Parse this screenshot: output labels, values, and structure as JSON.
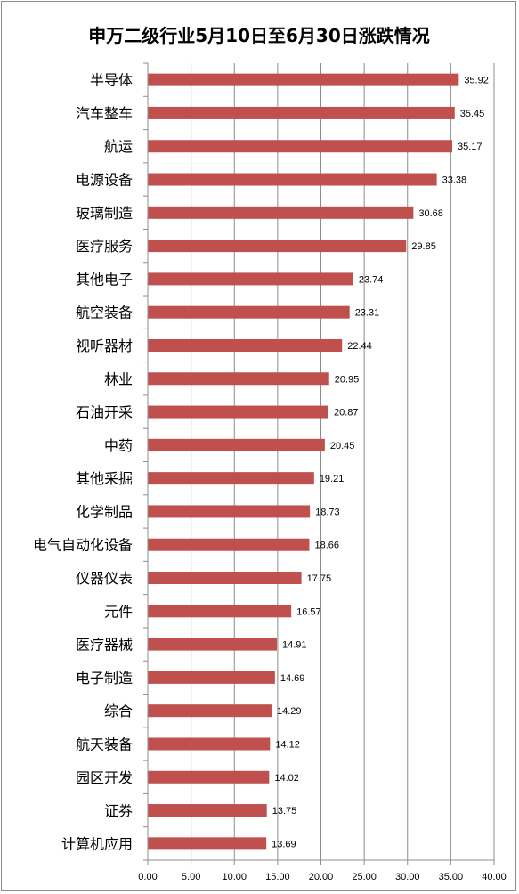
{
  "chart_data": {
    "type": "bar",
    "orientation": "horizontal",
    "title": "申万二级行业5月10日至6月30日涨跌情况",
    "categories": [
      "半导体",
      "汽车整车",
      "航运",
      "电源设备",
      "玻璃制造",
      "医疗服务",
      "其他电子",
      "航空装备",
      "视听器材",
      "林业",
      "石油开采",
      "中药",
      "其他采掘",
      "化学制品",
      "电气自动化设备",
      "仪器仪表",
      "元件",
      "医疗器械",
      "电子制造",
      "综合",
      "航天装备",
      "园区开发",
      "证券",
      "计算机应用"
    ],
    "values": [
      35.92,
      35.45,
      35.17,
      33.38,
      30.68,
      29.85,
      23.74,
      23.31,
      22.44,
      20.95,
      20.87,
      20.45,
      19.21,
      18.73,
      18.66,
      17.75,
      16.57,
      14.91,
      14.69,
      14.29,
      14.12,
      14.02,
      13.75,
      13.69
    ],
    "value_labels": [
      "35.92",
      "35.45",
      "35.17",
      "33.38",
      "30.68",
      "29.85",
      "23.74",
      "23.31",
      "22.44",
      "20.95",
      "20.87",
      "20.45",
      "19.21",
      "18.73",
      "18.66",
      "17.75",
      "16.57",
      "14.91",
      "14.69",
      "14.29",
      "14.12",
      "14.02",
      "13.75",
      "13.69"
    ],
    "xlim": [
      0,
      40
    ],
    "x_ticks": [
      0,
      5,
      10,
      15,
      20,
      25,
      30,
      35,
      40
    ],
    "x_tick_labels": [
      "0.00",
      "5.00",
      "10.00",
      "15.00",
      "20.00",
      "25.00",
      "30.00",
      "35.00",
      "40.00"
    ],
    "xlabel": "",
    "ylabel": "",
    "grid": "vertical",
    "legend": "none",
    "bar_color": "#c0504d",
    "grid_color": "#8c8c8c"
  }
}
